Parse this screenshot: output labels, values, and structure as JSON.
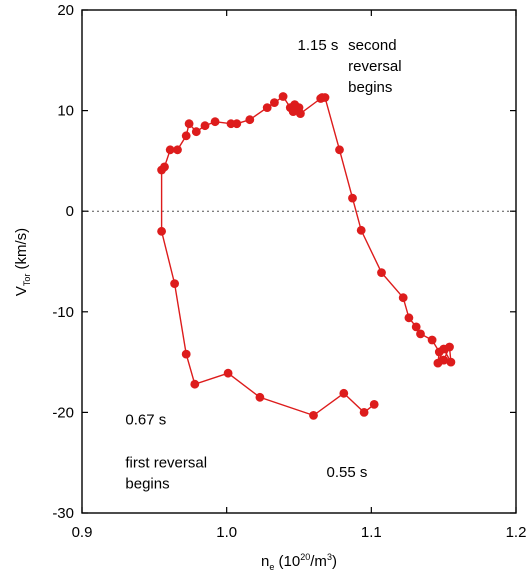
{
  "chart_data": {
    "type": "line",
    "title": "",
    "xlabel": {
      "base": "n",
      "sub": "e",
      "rest": " (10",
      "sup": "20",
      "unit": "/m",
      "unit_sup": "3",
      "close": ")"
    },
    "ylabel": {
      "base": "V",
      "sub": "Tor",
      "rest": " (km/s)"
    },
    "xlim": [
      0.9,
      1.2
    ],
    "ylim": [
      -30,
      20
    ],
    "xticks": [
      0.9,
      1.0,
      1.1,
      1.2
    ],
    "xtick_labels": [
      "0.9",
      "1.0",
      "1.1",
      "1.2"
    ],
    "yticks": [
      -30,
      -20,
      -10,
      0,
      10,
      20
    ],
    "ytick_labels": [
      "-30",
      "-20",
      "-10",
      "0",
      "10",
      "20"
    ],
    "zero_line": true,
    "grid": false,
    "legend": false,
    "color": "#dd1c1c",
    "series": [
      {
        "name": "",
        "x": [
          1.102,
          1.095,
          1.081,
          1.06,
          1.023,
          1.001,
          0.978,
          0.972,
          0.964,
          0.955,
          0.955,
          0.957,
          0.961,
          0.966,
          0.972,
          0.974,
          0.979,
          0.985,
          0.992,
          1.003,
          1.007,
          1.016,
          1.028,
          1.033,
          1.039,
          1.044,
          1.046,
          1.047,
          1.05,
          1.048,
          1.051,
          1.065,
          1.066,
          1.068,
          1.078,
          1.087,
          1.093,
          1.107,
          1.122,
          1.126,
          1.131,
          1.134,
          1.142,
          1.147,
          1.146,
          1.15,
          1.155,
          1.154,
          1.15,
          1.15
        ],
        "y": [
          -19.2,
          -20.0,
          -18.1,
          -20.3,
          -18.5,
          -16.1,
          -17.2,
          -14.2,
          -7.2,
          -2.0,
          4.1,
          4.4,
          6.1,
          6.1,
          7.5,
          8.7,
          7.9,
          8.5,
          8.9,
          8.7,
          8.7,
          9.1,
          10.3,
          10.8,
          11.4,
          10.3,
          9.9,
          10.6,
          10.3,
          10.2,
          9.7,
          11.2,
          11.3,
          11.3,
          6.1,
          1.3,
          -1.9,
          -6.1,
          -8.6,
          -10.6,
          -11.5,
          -12.2,
          -12.8,
          -14.0,
          -15.1,
          -13.7,
          -15.0,
          -13.5,
          -14.8,
          -14.8
        ]
      }
    ],
    "annotations": [
      {
        "lines": [
          "1.15 s"
        ],
        "x": 1.049,
        "y": 16.0
      },
      {
        "lines": [
          "second",
          "reversal",
          "begins"
        ],
        "x": 1.084,
        "y": 16.0
      },
      {
        "lines": [
          "0.67 s"
        ],
        "x": 0.93,
        "y": -21.2
      },
      {
        "lines": [
          "first reversal",
          "begins"
        ],
        "x": 0.93,
        "y": -25.5
      },
      {
        "lines": [
          "0.55 s"
        ],
        "x": 1.069,
        "y": -26.4
      }
    ]
  }
}
